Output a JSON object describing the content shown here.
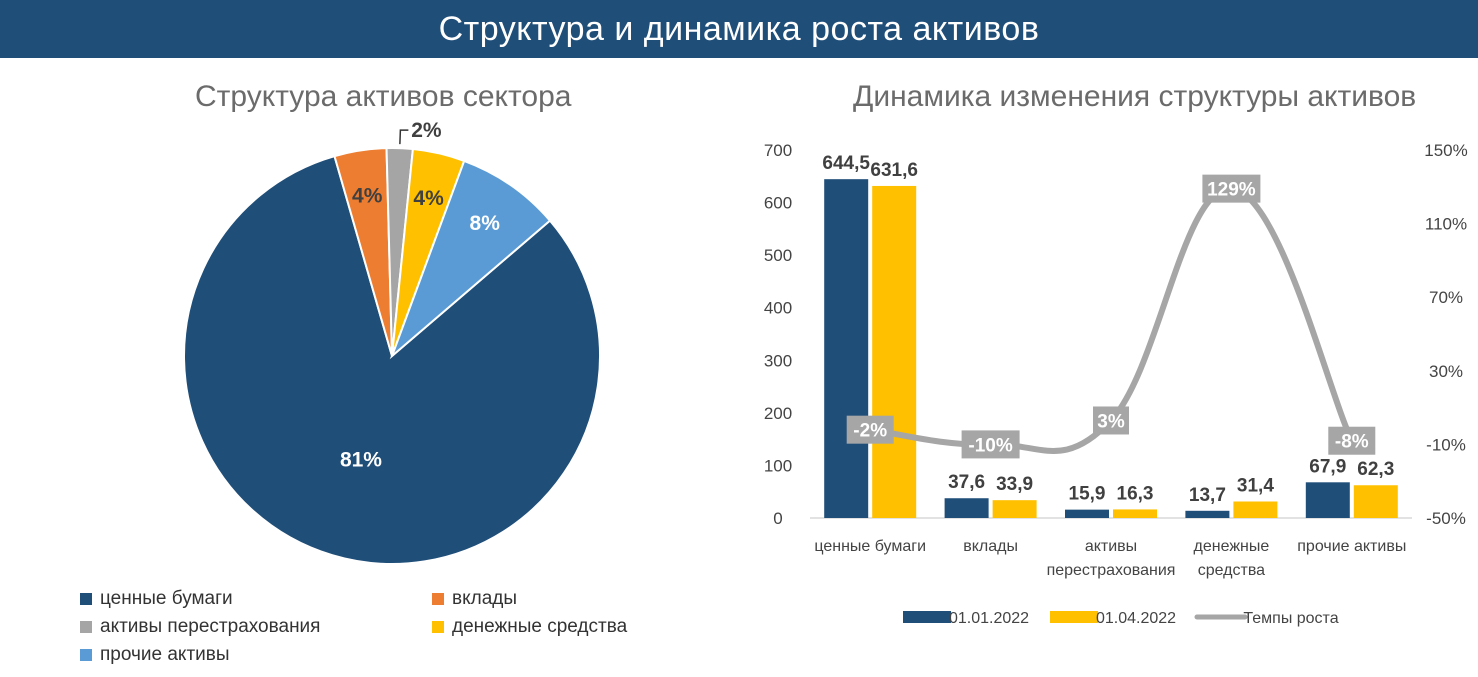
{
  "header": {
    "title": "Структура и динамика роста активов"
  },
  "pie_title": "Структура активов сектора",
  "bar_title": "Динамика изменения структуры активов",
  "colors": {
    "dark_blue": "#1f4e79",
    "orange": "#ed7d31",
    "gray": "#a5a5a5",
    "yellow": "#ffc000",
    "light_blue": "#5b9bd5",
    "growth_line": "#a6a6a6"
  },
  "pie_legend": [
    {
      "label": "ценные бумаги",
      "color": "#1f4e79"
    },
    {
      "label": "вклады",
      "color": "#ed7d31"
    },
    {
      "label": "активы перестрахования",
      "color": "#a5a5a5"
    },
    {
      "label": "денежные средства",
      "color": "#ffc000"
    },
    {
      "label": "прочие активы",
      "color": "#5b9bd5"
    }
  ],
  "chart_data": [
    {
      "type": "pie",
      "title": "Структура активов сектора",
      "slices": [
        {
          "label": "ценные бумаги",
          "value": 81,
          "display": "81%",
          "color": "#1f4e79"
        },
        {
          "label": "вклады",
          "value": 4,
          "display": "4%",
          "color": "#ed7d31"
        },
        {
          "label": "активы перестрахования",
          "value": 2,
          "display": "2%",
          "color": "#a5a5a5"
        },
        {
          "label": "денежные средства",
          "value": 4,
          "display": "4%",
          "color": "#ffc000"
        },
        {
          "label": "прочие активы",
          "value": 8,
          "display": "8%",
          "color": "#5b9bd5"
        }
      ]
    },
    {
      "type": "bar",
      "title": "Динамика изменения структуры активов",
      "categories": [
        [
          "ценные бумаги"
        ],
        [
          "вклады"
        ],
        [
          "активы",
          "перестрахования"
        ],
        [
          "денежные",
          "средства"
        ],
        [
          "прочие активы"
        ]
      ],
      "series": [
        {
          "name": "01.01.2022",
          "color": "#1f4e79",
          "values": [
            644.5,
            37.6,
            15.9,
            13.7,
            67.9
          ],
          "labels": [
            "644,5",
            "37,6",
            "15,9",
            "13,7",
            "67,9"
          ]
        },
        {
          "name": "01.04.2022",
          "color": "#ffc000",
          "values": [
            631.6,
            33.9,
            16.3,
            31.4,
            62.3
          ],
          "labels": [
            "631,6",
            "33,9",
            "16,3",
            "31,4",
            "62,3"
          ]
        }
      ],
      "line_series": {
        "name": "Темпы роста",
        "color": "#a6a6a6",
        "values": [
          -2,
          -10,
          3,
          129,
          -8
        ],
        "labels": [
          "-2%",
          "-10%",
          "3%",
          "129%",
          "-8%"
        ]
      },
      "ylim": [
        0,
        700
      ],
      "yticks": [
        "0",
        "100",
        "200",
        "300",
        "400",
        "500",
        "600",
        "700"
      ],
      "y2lim": [
        -50,
        150
      ],
      "y2ticks": [
        "-50%",
        "-10%",
        "30%",
        "70%",
        "110%",
        "150%"
      ],
      "y2tick_values": [
        -50,
        -10,
        30,
        70,
        110,
        150
      ],
      "legend_position": "bottom"
    }
  ]
}
